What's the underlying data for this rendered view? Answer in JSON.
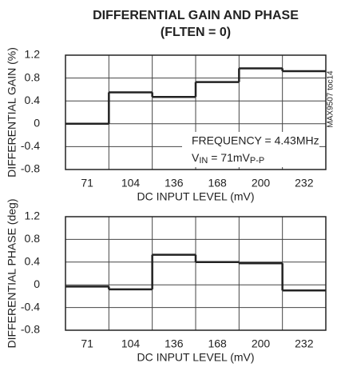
{
  "chart_data": [
    {
      "type": "step",
      "title": "DIFFERENTIAL GAIN AND PHASE",
      "subtitle": "(FLTEN = 0)",
      "y_label": "DIFFERENTIAL GAIN (%)",
      "x_label": "DC INPUT LEVEL (mV)",
      "categories": [
        "71",
        "104",
        "136",
        "168",
        "200",
        "232"
      ],
      "values": [
        0,
        0.55,
        0.47,
        0.73,
        0.97,
        0.92
      ],
      "color": "#222222",
      "ylim": [
        -0.8,
        1.2
      ],
      "yticks": [
        1.2,
        0.8,
        0.4,
        0,
        -0.4,
        -0.8
      ],
      "grid": true,
      "annotation": {
        "line1": "FREQUENCY = 4.43MHz",
        "line2": [
          "V",
          "IN",
          " = 71mV",
          "P-P"
        ]
      },
      "side_note": "MAX9507 toc14"
    },
    {
      "type": "step",
      "y_label": "DIFFERENTIAL PHASE (deg)",
      "x_label": "DC INPUT LEVEL (mV)",
      "categories": [
        "71",
        "104",
        "136",
        "168",
        "200",
        "232"
      ],
      "values": [
        -0.03,
        -0.08,
        0.53,
        0.4,
        0.38,
        -0.1
      ],
      "color": "#222222",
      "ylim": [
        -0.8,
        1.2
      ],
      "yticks": [
        1.2,
        0.8,
        0.4,
        0,
        -0.4,
        -0.8
      ],
      "grid": true
    }
  ]
}
